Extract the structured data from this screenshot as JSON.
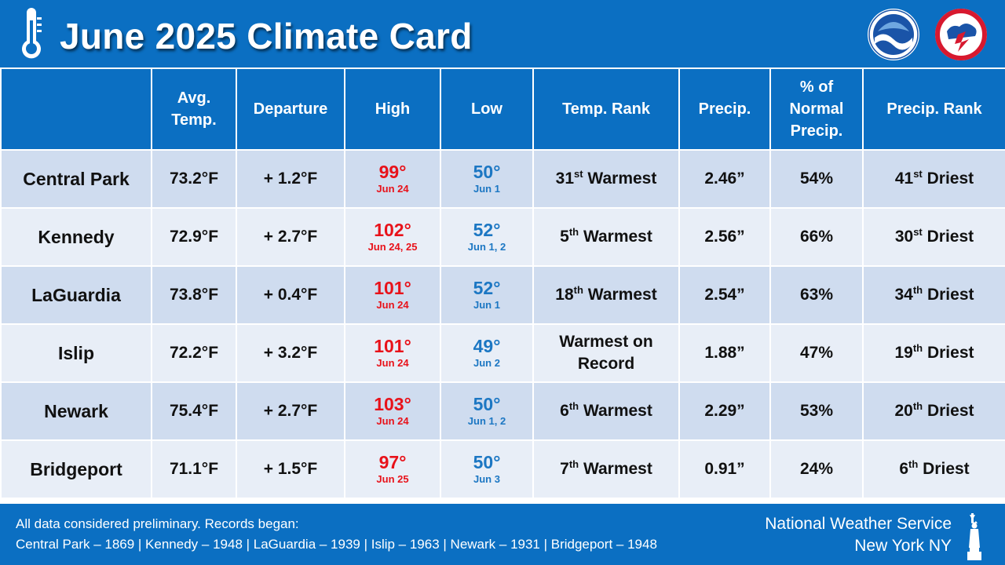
{
  "header": {
    "title": "June 2025 Climate Card",
    "icon": "thermometer-icon",
    "logos": [
      "noaa-logo",
      "nws-logo"
    ],
    "logo_colors": {
      "noaa_blue": "#1a54a8",
      "nws_red": "#d7192f"
    }
  },
  "table": {
    "columns": [
      {
        "key": "station",
        "label": ""
      },
      {
        "key": "avg_temp",
        "label": "Avg. Temp."
      },
      {
        "key": "departure",
        "label": "Departure"
      },
      {
        "key": "high",
        "label": "High"
      },
      {
        "key": "low",
        "label": "Low"
      },
      {
        "key": "temp_rank",
        "label": "Temp. Rank"
      },
      {
        "key": "precip",
        "label": "Precip."
      },
      {
        "key": "pct_normal",
        "label": "% of Normal Precip."
      },
      {
        "key": "precip_rank",
        "label": "Precip. Rank"
      }
    ],
    "rows": [
      {
        "station": "Central Park",
        "avg_temp": "73.2°F",
        "departure": "+ 1.2°F",
        "high": "99°",
        "high_date": "Jun 24",
        "low": "50°",
        "low_date": "Jun 1",
        "temp_rank_num": "31",
        "temp_rank_sup": "st",
        "temp_rank_text": "Warmest",
        "precip": "2.46”",
        "pct_normal": "54%",
        "precip_rank_num": "41",
        "precip_rank_sup": "st",
        "precip_rank_text": "Driest"
      },
      {
        "station": "Kennedy",
        "avg_temp": "72.9°F",
        "departure": "+ 2.7°F",
        "high": "102°",
        "high_date": "Jun 24, 25",
        "low": "52°",
        "low_date": "Jun 1, 2",
        "temp_rank_num": "5",
        "temp_rank_sup": "th",
        "temp_rank_text": "Warmest",
        "precip": "2.56”",
        "pct_normal": "66%",
        "precip_rank_num": "30",
        "precip_rank_sup": "st",
        "precip_rank_text": "Driest"
      },
      {
        "station": "LaGuardia",
        "avg_temp": "73.8°F",
        "departure": "+ 0.4°F",
        "high": "101°",
        "high_date": "Jun 24",
        "low": "52°",
        "low_date": "Jun 1",
        "temp_rank_num": "18",
        "temp_rank_sup": "th",
        "temp_rank_text": "Warmest",
        "precip": "2.54”",
        "pct_normal": "63%",
        "precip_rank_num": "34",
        "precip_rank_sup": "th",
        "precip_rank_text": "Driest"
      },
      {
        "station": "Islip",
        "avg_temp": "72.2°F",
        "departure": "+ 3.2°F",
        "high": "101°",
        "high_date": "Jun 24",
        "low": "49°",
        "low_date": "Jun 2",
        "temp_rank_num": "",
        "temp_rank_sup": "",
        "temp_rank_text": "Warmest on Record",
        "precip": "1.88”",
        "pct_normal": "47%",
        "precip_rank_num": "19",
        "precip_rank_sup": "th",
        "precip_rank_text": "Driest"
      },
      {
        "station": "Newark",
        "avg_temp": "75.4°F",
        "departure": "+ 2.7°F",
        "high": "103°",
        "high_date": "Jun 24",
        "low": "50°",
        "low_date": "Jun 1, 2",
        "temp_rank_num": "6",
        "temp_rank_sup": "th",
        "temp_rank_text": "Warmest",
        "precip": "2.29”",
        "pct_normal": "53%",
        "precip_rank_num": "20",
        "precip_rank_sup": "th",
        "precip_rank_text": "Driest"
      },
      {
        "station": "Bridgeport",
        "avg_temp": "71.1°F",
        "departure": "+ 1.5°F",
        "high": "97°",
        "high_date": "Jun 25",
        "low": "50°",
        "low_date": "Jun 3",
        "temp_rank_num": "7",
        "temp_rank_sup": "th",
        "temp_rank_text": "Warmest",
        "precip": "0.91”",
        "pct_normal": "24%",
        "precip_rank_num": "6",
        "precip_rank_sup": "th",
        "precip_rank_text": "Driest"
      }
    ],
    "colors": {
      "header_bg": "#0b6fc2",
      "row_odd": "#cfdcef",
      "row_even": "#e8eef7",
      "high": "#e8121a",
      "low": "#1c77c3"
    }
  },
  "footer": {
    "note": "All data considered preliminary. Records began:",
    "records": "Central Park – 1869  |  Kennedy – 1948  |  LaGuardia – 1939  |  Islip – 1963  |  Newark – 1931  |  Bridgeport – 1948",
    "agency": "National Weather Service",
    "office": "New York NY",
    "icon": "statue-of-liberty-icon"
  }
}
